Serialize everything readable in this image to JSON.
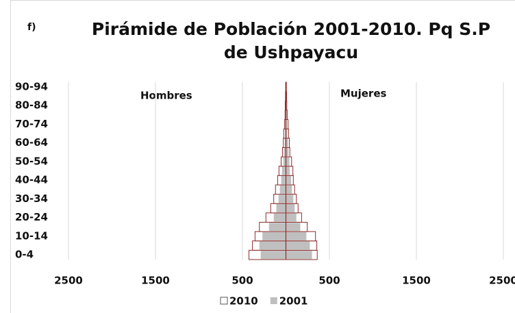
{
  "chart_data": {
    "type": "pyramid",
    "label": "f)",
    "title": [
      "Pirámide de Población 2001-2010.  Pq S.P",
      "de Ushpayacu"
    ],
    "annotations": [
      "Hombres",
      "Mujeres"
    ],
    "categories": [
      "0-4",
      null,
      "10-14",
      null,
      "20-24",
      null,
      "30-34",
      null,
      "40-44",
      null,
      "50-54",
      null,
      "60-64",
      null,
      "70-74",
      null,
      "80-84",
      null,
      "90-94"
    ],
    "series": [
      {
        "name": "2010",
        "color": "#ffffff",
        "hombres": [
          425,
          385,
          355,
          305,
          230,
          175,
          140,
          120,
          95,
          80,
          55,
          40,
          30,
          25,
          15,
          10,
          8,
          5,
          3
        ],
        "mujeres": [
          360,
          355,
          340,
          245,
          180,
          140,
          120,
          100,
          85,
          80,
          65,
          45,
          40,
          30,
          25,
          15,
          10,
          8,
          5
        ]
      },
      {
        "name": "2001",
        "color": "#bfbfbf",
        "hombres": [
          290,
          305,
          270,
          195,
          140,
          110,
          85,
          70,
          55,
          45,
          30,
          25,
          15,
          10,
          8,
          6,
          4,
          3,
          2
        ],
        "mujeres": [
          300,
          275,
          235,
          165,
          120,
          100,
          85,
          70,
          60,
          45,
          40,
          30,
          25,
          15,
          10,
          8,
          5,
          3,
          2
        ]
      }
    ],
    "xlim": [
      -2500,
      2500
    ],
    "xticks": [
      {
        "value": -2500,
        "label": "2500"
      },
      {
        "value": -1500,
        "label": "1500"
      },
      {
        "value": -500,
        "label": "500"
      },
      500,
      1500,
      2500
    ],
    "grid": true,
    "bar_outline": "#8b2a2a",
    "legend": "bottom"
  }
}
